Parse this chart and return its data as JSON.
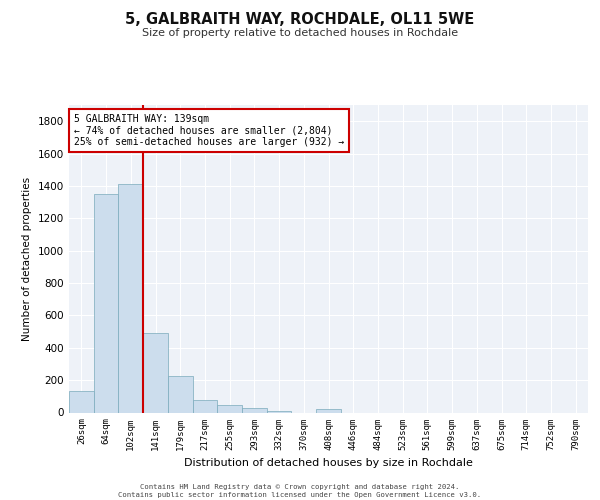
{
  "title": "5, GALBRAITH WAY, ROCHDALE, OL11 5WE",
  "subtitle": "Size of property relative to detached houses in Rochdale",
  "xlabel": "Distribution of detached houses by size in Rochdale",
  "ylabel": "Number of detached properties",
  "bar_color": "#ccdded",
  "bar_edge_color": "#7aaabb",
  "grid_color": "#ccccdd",
  "bg_color": "#eef2f8",
  "vline_color": "#cc0000",
  "vline_x": 2.5,
  "annotation_text": "5 GALBRAITH WAY: 139sqm\n← 74% of detached houses are smaller (2,804)\n25% of semi-detached houses are larger (932) →",
  "annotation_box_color": "#cc0000",
  "annotation_text_color": "#000000",
  "categories": [
    "26sqm",
    "64sqm",
    "102sqm",
    "141sqm",
    "179sqm",
    "217sqm",
    "255sqm",
    "293sqm",
    "332sqm",
    "370sqm",
    "408sqm",
    "446sqm",
    "484sqm",
    "523sqm",
    "561sqm",
    "599sqm",
    "637sqm",
    "675sqm",
    "714sqm",
    "752sqm",
    "790sqm"
  ],
  "bar_heights": [
    135,
    1350,
    1410,
    490,
    225,
    75,
    45,
    28,
    12,
    0,
    20,
    0,
    0,
    0,
    0,
    0,
    0,
    0,
    0,
    0,
    0
  ],
  "ylim": [
    0,
    1900
  ],
  "yticks": [
    0,
    200,
    400,
    600,
    800,
    1000,
    1200,
    1400,
    1600,
    1800
  ],
  "footer_line1": "Contains HM Land Registry data © Crown copyright and database right 2024.",
  "footer_line2": "Contains public sector information licensed under the Open Government Licence v3.0."
}
